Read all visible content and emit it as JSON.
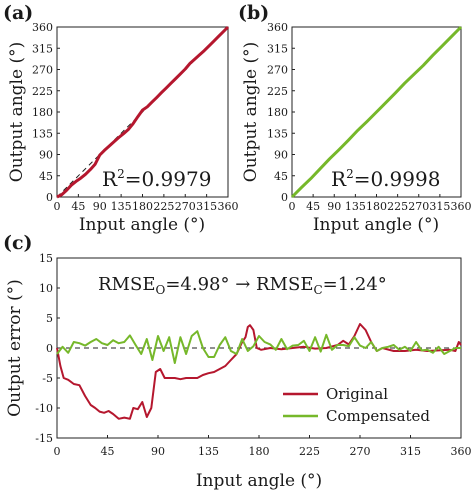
{
  "colors": {
    "original": "#b5172e",
    "compensated": "#76b82a",
    "ideal": "#222222",
    "axis": "#222222"
  },
  "panel_a": {
    "tag": "(a)",
    "r2_text": "R²=0.9979"
  },
  "panel_b": {
    "tag": "(b)",
    "r2_text": "R²=0.9998"
  },
  "panel_c": {
    "tag": "(c)",
    "rmse_text": "RMSEO=4.98° → RMSEC=1.24°"
  },
  "chart_data": [
    {
      "id": "a",
      "type": "line",
      "xlabel": "Input angle (°)",
      "ylabel": "Output angle (°)",
      "xlim": [
        0,
        360
      ],
      "ylim": [
        0,
        360
      ],
      "xticks": [
        0,
        45,
        90,
        135,
        180,
        225,
        270,
        315,
        360
      ],
      "yticks": [
        0,
        45,
        90,
        135,
        180,
        225,
        270,
        315,
        360
      ],
      "annotation": "R²=0.9979",
      "series": [
        {
          "color": "#b5172e",
          "x": [
            0,
            10,
            20,
            30,
            40,
            50,
            60,
            70,
            80,
            90,
            100,
            110,
            120,
            130,
            140,
            150,
            160,
            170,
            180,
            190,
            200,
            210,
            220,
            230,
            240,
            250,
            260,
            270,
            280,
            290,
            300,
            310,
            320,
            330,
            340,
            350,
            360
          ],
          "y": [
            0,
            5,
            14,
            25,
            33,
            40,
            48,
            58,
            69,
            89,
            99,
            108,
            117,
            126,
            134,
            143,
            155,
            170,
            184,
            191,
            201,
            211,
            221,
            231,
            241,
            251,
            261,
            271,
            283,
            292,
            301,
            310,
            320,
            330,
            340,
            350,
            360
          ]
        },
        {
          "style": "dashed",
          "color": "#222222",
          "x": [
            0,
            360
          ],
          "y": [
            0,
            360
          ]
        }
      ]
    },
    {
      "id": "b",
      "type": "line",
      "xlabel": "Input angle (°)",
      "ylabel": "Output angle (°)",
      "xlim": [
        0,
        360
      ],
      "ylim": [
        0,
        360
      ],
      "xticks": [
        0,
        45,
        90,
        135,
        180,
        225,
        270,
        315,
        360
      ],
      "yticks": [
        0,
        45,
        90,
        135,
        180,
        225,
        270,
        315,
        360
      ],
      "annotation": "R²=0.9998",
      "series": [
        {
          "color": "#76b82a",
          "x": [
            0,
            20,
            40,
            60,
            80,
            100,
            120,
            140,
            160,
            180,
            200,
            220,
            240,
            260,
            280,
            300,
            320,
            340,
            360
          ],
          "y": [
            0,
            20,
            39,
            60,
            81,
            100,
            120,
            141,
            160,
            180,
            200,
            220,
            241,
            260,
            279,
            300,
            320,
            340,
            360
          ]
        }
      ]
    },
    {
      "id": "c",
      "type": "line",
      "xlabel": "Input angle (°)",
      "ylabel": "Output error (°)",
      "xlim": [
        0,
        360
      ],
      "ylim": [
        -15,
        15
      ],
      "xticks": [
        0,
        45,
        90,
        135,
        180,
        225,
        270,
        315,
        360
      ],
      "yticks": [
        -15,
        -10,
        -5,
        0,
        5,
        10,
        15
      ],
      "legend_position": "bottom-right",
      "series": [
        {
          "name": "Original",
          "color": "#b5172e",
          "x": [
            0,
            3,
            6,
            10,
            15,
            20,
            25,
            30,
            34,
            38,
            42,
            46,
            50,
            55,
            60,
            65,
            68,
            72,
            76,
            80,
            84,
            88,
            92,
            96,
            100,
            105,
            110,
            115,
            120,
            125,
            130,
            135,
            140,
            145,
            150,
            155,
            160,
            165,
            168,
            170,
            172,
            175,
            178,
            182,
            190,
            200,
            210,
            220,
            230,
            240,
            250,
            255,
            260,
            265,
            270,
            275,
            280,
            285,
            290,
            300,
            310,
            320,
            330,
            340,
            350,
            355,
            358,
            360
          ],
          "y": [
            0,
            -3,
            -5,
            -5.3,
            -6,
            -6.2,
            -8,
            -9.5,
            -10,
            -10.6,
            -10.8,
            -10.5,
            -11,
            -11.8,
            -11.6,
            -11.8,
            -10,
            -10.2,
            -9,
            -11.5,
            -10,
            -4,
            -3.5,
            -5,
            -5,
            -5,
            -5.2,
            -5,
            -5,
            -5,
            -4.5,
            -4.2,
            -4,
            -3.5,
            -3,
            -2,
            -1,
            1,
            1.8,
            3.5,
            3.8,
            3,
            0,
            -0.3,
            0,
            -0.2,
            0,
            0.2,
            -0.1,
            0,
            0.5,
            1.2,
            0.6,
            2,
            4,
            3,
            1,
            -0.5,
            0,
            -0.5,
            -0.5,
            -0.3,
            -0.5,
            -0.4,
            -0.3,
            -0.5,
            1,
            0.5
          ]
        },
        {
          "name": "Compensated",
          "color": "#76b82a",
          "x": [
            0,
            5,
            10,
            15,
            20,
            25,
            30,
            35,
            40,
            45,
            50,
            55,
            60,
            65,
            70,
            75,
            80,
            85,
            90,
            95,
            100,
            105,
            110,
            115,
            120,
            125,
            130,
            135,
            140,
            145,
            150,
            155,
            160,
            165,
            170,
            175,
            180,
            185,
            190,
            195,
            200,
            205,
            210,
            215,
            220,
            225,
            230,
            235,
            240,
            245,
            250,
            255,
            260,
            265,
            270,
            275,
            280,
            285,
            290,
            295,
            300,
            305,
            310,
            315,
            320,
            325,
            330,
            335,
            340,
            345,
            350,
            355,
            360
          ],
          "y": [
            -1,
            0.2,
            -0.8,
            1,
            0.8,
            0.4,
            1,
            1.5,
            0.8,
            0.5,
            1.3,
            0.8,
            1,
            2.1,
            0.5,
            -1,
            1.5,
            -2,
            2,
            -0.5,
            1.8,
            -2.5,
            1.8,
            -1,
            2,
            2.8,
            0,
            -1.5,
            -1.5,
            0.5,
            1.8,
            -0.5,
            -1,
            1.5,
            -0.5,
            0.3,
            2,
            1,
            0.6,
            -0.3,
            1.5,
            -0.2,
            0.4,
            0.5,
            1.2,
            -0.5,
            1.8,
            -0.6,
            2.2,
            -0.3,
            0.5,
            0.5,
            0.3,
            1.8,
            0.4,
            0,
            1,
            -0.5,
            0,
            0.2,
            0.5,
            -0.3,
            0.2,
            -0.5,
            1,
            -0.4,
            -0.3,
            -0.8,
            0.2,
            -1,
            -0.5,
            0,
            0
          ]
        },
        {
          "style": "dashed",
          "color": "#222222",
          "x": [
            0,
            360
          ],
          "y": [
            0,
            0
          ]
        }
      ]
    }
  ]
}
